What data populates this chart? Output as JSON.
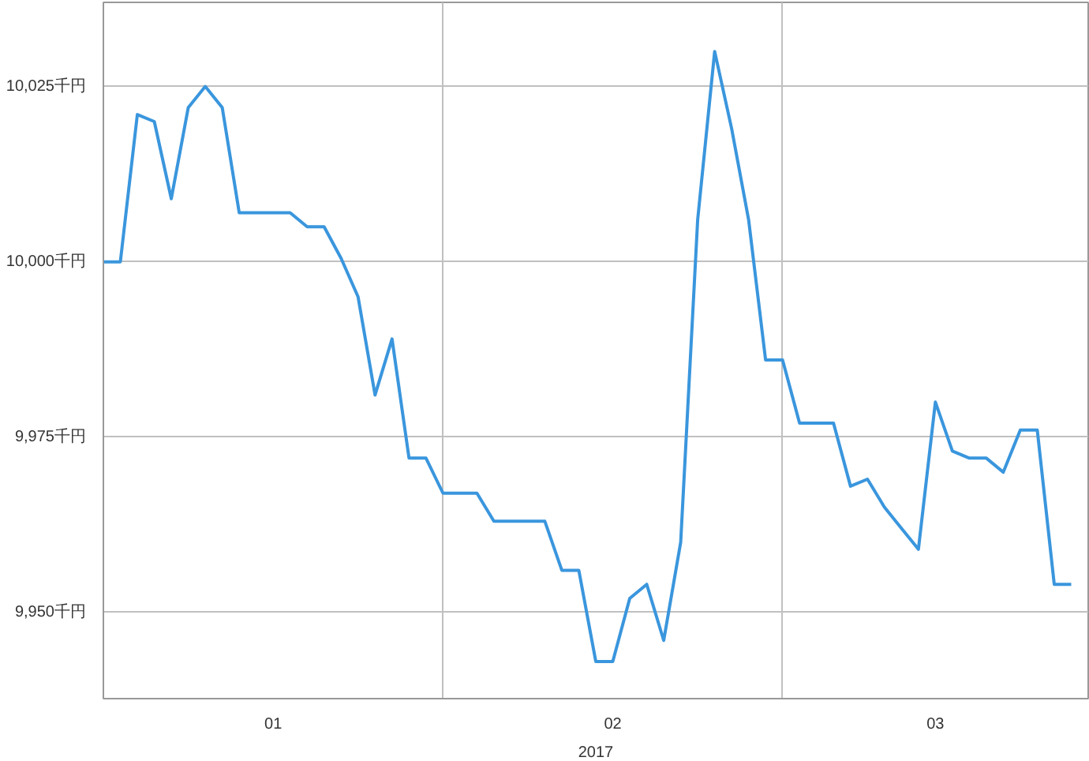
{
  "chart_data": {
    "type": "line",
    "xlabel": "2017",
    "categories": [
      null,
      null,
      null,
      null,
      null,
      null,
      null,
      null,
      null,
      null,
      null,
      null,
      null,
      null,
      null,
      null,
      null,
      null,
      null,
      null,
      null,
      null,
      null,
      null,
      null,
      null,
      null,
      null,
      null,
      null,
      null,
      null,
      null,
      null,
      null,
      null,
      null,
      null,
      null,
      null,
      null,
      null,
      null,
      null,
      null,
      null,
      null,
      null,
      null,
      null,
      null,
      null,
      null,
      null,
      null,
      null,
      null,
      null
    ],
    "series": [
      {
        "color": "#3a96dd",
        "values": [
          10000,
          10000,
          10021,
          10020,
          10009,
          10022,
          10025,
          10022,
          10007,
          10007,
          10007,
          10007,
          10005,
          10005,
          10000.5,
          9995,
          9981,
          9989,
          9972,
          9972,
          9967,
          9967,
          9967,
          9963,
          9963,
          9963,
          9963,
          9956,
          9956,
          9943,
          9943,
          9952,
          9954,
          9946,
          9960,
          10006,
          10030,
          10019,
          10006,
          9986,
          9986,
          9977,
          9977,
          9977,
          9968,
          9969,
          9965,
          9962,
          9959,
          9980,
          9973,
          9972,
          9972,
          9970,
          9976,
          9976,
          9954,
          9954
        ]
      }
    ],
    "annotations": [
      "01",
      "02",
      "03"
    ],
    "ylim": [
      9937.7,
      10037
    ],
    "yticks": [
      {
        "value": 9950,
        "label": "9,950千円"
      },
      {
        "value": 9975,
        "label": "9,975千円"
      },
      {
        "value": 10000,
        "label": "10,000千円"
      },
      {
        "value": 10025,
        "label": "10,025千円"
      }
    ],
    "grid": true,
    "marker": "none",
    "line_style": "solid"
  }
}
